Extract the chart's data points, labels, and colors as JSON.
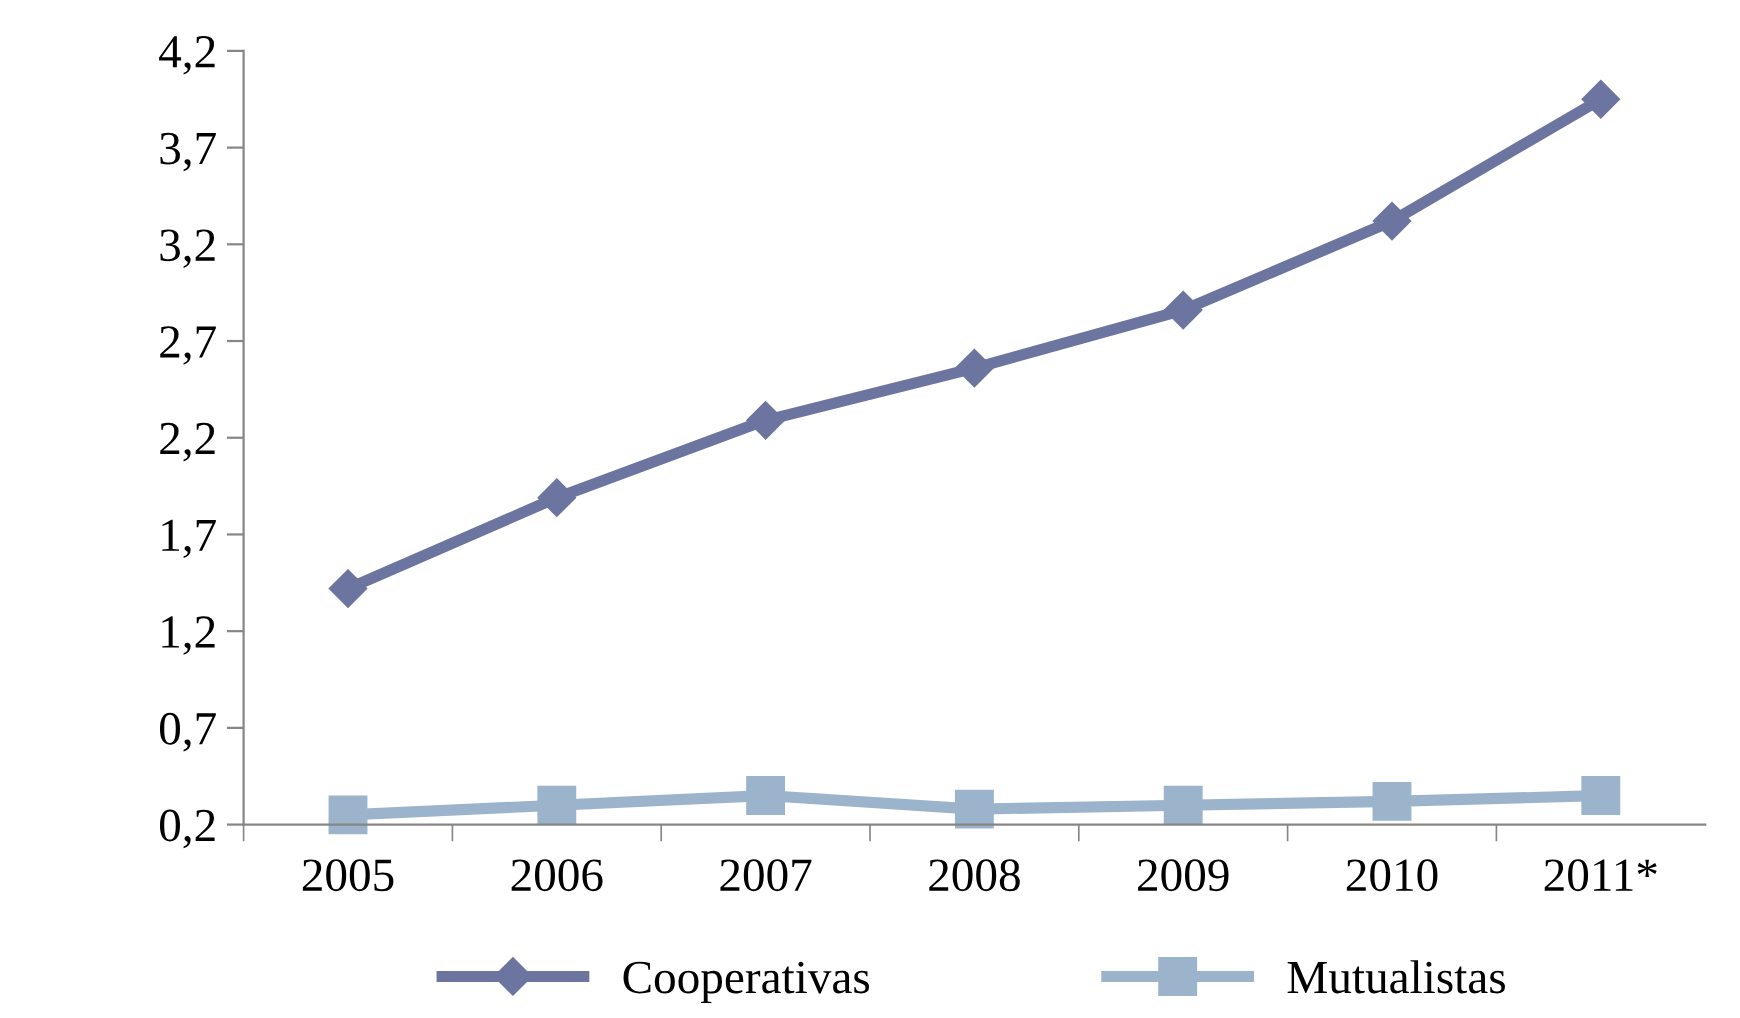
{
  "chart_data": {
    "type": "line",
    "categories": [
      "2005",
      "2006",
      "2007",
      "2008",
      "2009",
      "2010",
      "2011*"
    ],
    "series": [
      {
        "name": "Cooperativas",
        "color": "#6b75a0",
        "marker": "diamond",
        "values": [
          1.42,
          1.89,
          2.29,
          2.56,
          2.86,
          3.32,
          3.95
        ]
      },
      {
        "name": "Mutualistas",
        "color": "#9bb4cc",
        "marker": "square",
        "values": [
          0.25,
          0.3,
          0.35,
          0.28,
          0.3,
          0.32,
          0.35
        ]
      }
    ],
    "ylim": [
      0.2,
      4.2
    ],
    "yticks": [
      {
        "value": 0.2,
        "label": "0,2"
      },
      {
        "value": 0.7,
        "label": "0,7"
      },
      {
        "value": 1.2,
        "label": "1,2"
      },
      {
        "value": 1.7,
        "label": "1,7"
      },
      {
        "value": 2.2,
        "label": "2,2"
      },
      {
        "value": 2.7,
        "label": "2,7"
      },
      {
        "value": 3.2,
        "label": "3,2"
      },
      {
        "value": 3.7,
        "label": "3,7"
      },
      {
        "value": 4.2,
        "label": "4,2"
      }
    ],
    "grid": false,
    "legend": "bottom",
    "line_style": "solid"
  }
}
